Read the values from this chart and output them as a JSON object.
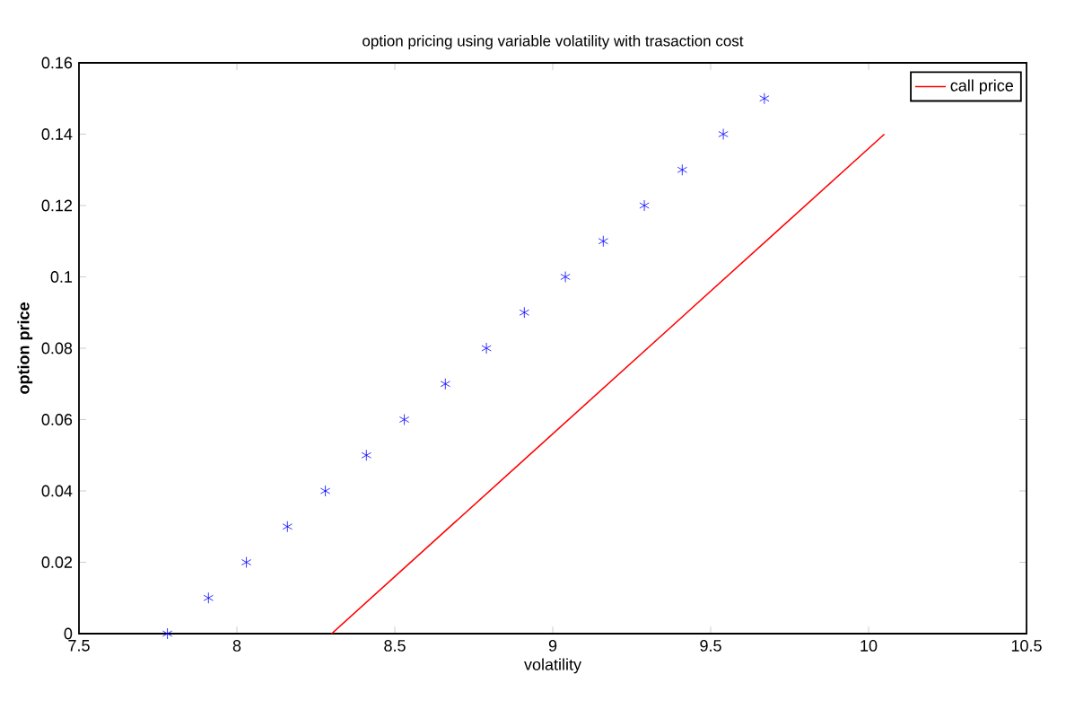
{
  "chart_data": {
    "type": "scatter",
    "title": "option pricing using variable volatility with trasaction cost",
    "xlabel": "volatility",
    "ylabel": "option price",
    "xlim": [
      7.5,
      10.5
    ],
    "xticks": [
      7.5,
      8,
      8.5,
      9,
      9.5,
      10,
      10.5
    ],
    "ylim": [
      0,
      0.16
    ],
    "yticks": [
      0,
      0.02,
      0.04,
      0.06,
      0.08,
      0.1,
      0.12,
      0.14,
      0.16
    ],
    "grid": false,
    "legend": "top right",
    "series": [
      {
        "color": "#0000ff",
        "marker": "cross",
        "x": [
          7.78,
          7.91,
          8.03,
          8.16,
          8.28,
          8.41,
          8.53,
          8.66,
          8.79,
          8.91,
          9.04,
          9.16,
          9.29,
          9.41,
          9.54,
          9.67
        ],
        "values": [
          0,
          0.01,
          0.02,
          0.03,
          0.04,
          0.05,
          0.06,
          0.07,
          0.08,
          0.09,
          0.1,
          0.11,
          0.12,
          0.13,
          0.14,
          0.15
        ]
      },
      {
        "type": "line",
        "name": "call price",
        "color": "#ff0000",
        "marker": "none",
        "line_style": "solid",
        "x": [
          8.3,
          10.05
        ],
        "values": [
          0,
          0.14
        ]
      }
    ]
  }
}
